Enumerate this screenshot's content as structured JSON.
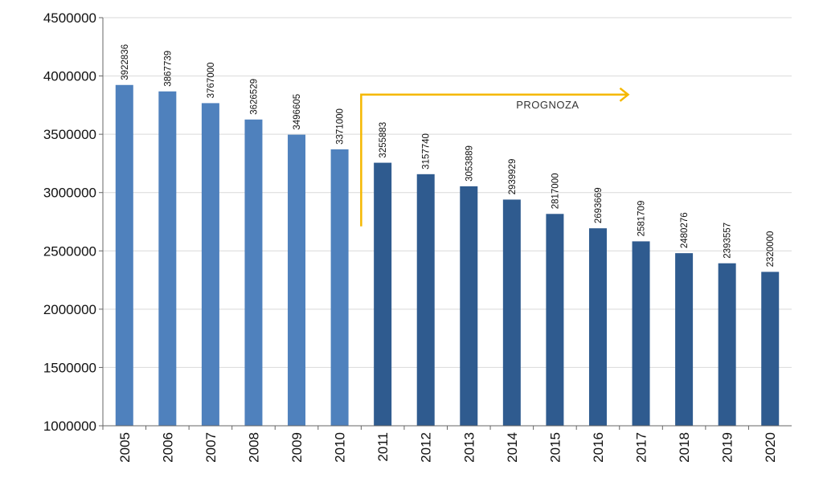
{
  "chart_data": {
    "type": "bar",
    "categories": [
      "2005",
      "2006",
      "2007",
      "2008",
      "2009",
      "2010",
      "2011",
      "2012",
      "2013",
      "2014",
      "2015",
      "2016",
      "2017",
      "2018",
      "2019",
      "2020"
    ],
    "values": [
      3922836,
      3867739,
      3767000,
      3626529,
      3496605,
      3371000,
      3255883,
      3157740,
      3053889,
      2939929,
      2817000,
      2693669,
      2581709,
      2480276,
      2393557,
      2320000
    ],
    "data_labels": [
      "3922836",
      "3867739",
      "3767000",
      "3626529",
      "3496605",
      "3371000",
      "3255883",
      "3157740",
      "3053889",
      "2939929",
      "2817000",
      "2693669",
      "2581709",
      "2480276",
      "2393557",
      "2320000"
    ],
    "ylim": [
      1000000,
      4500000
    ],
    "yticks": [
      "1000000",
      "1500000",
      "2000000",
      "2500000",
      "3000000",
      "3500000",
      "4000000",
      "4500000"
    ],
    "ytick_values": [
      1000000,
      1500000,
      2000000,
      2500000,
      3000000,
      3500000,
      4000000,
      4500000
    ],
    "grid": true,
    "colors": {
      "actual": "#4f81bd",
      "forecast": "#2f5b8f",
      "arrow": "#f5b800",
      "grid": "#d9d9d9"
    },
    "forecast_start_index": 6,
    "annotation": "PROGNOZA",
    "title": "",
    "xlabel": "",
    "ylabel": ""
  }
}
